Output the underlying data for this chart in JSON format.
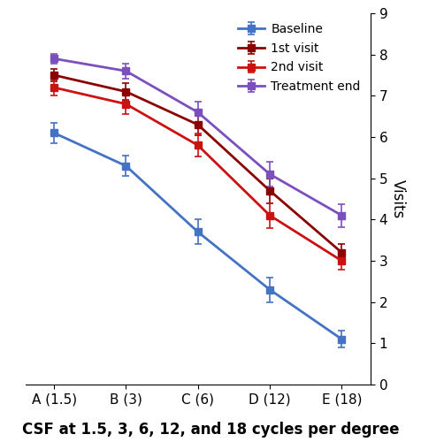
{
  "x_labels": [
    "A (1.5)",
    "B (3)",
    "C (6)",
    "D (12)",
    "E (18)"
  ],
  "x_positions": [
    0,
    1,
    2,
    3,
    4
  ],
  "series": [
    {
      "label": "Baseline",
      "color": "#4472C4",
      "values": [
        6.1,
        5.3,
        3.7,
        2.3,
        1.1
      ],
      "errors": [
        0.25,
        0.25,
        0.3,
        0.3,
        0.2
      ]
    },
    {
      "label": "1st visit",
      "color": "#8B0000",
      "values": [
        7.5,
        7.1,
        6.3,
        4.7,
        3.2
      ],
      "errors": [
        0.15,
        0.2,
        0.25,
        0.3,
        0.2
      ]
    },
    {
      "label": "2nd visit",
      "color": "#CC1111",
      "values": [
        7.2,
        6.8,
        5.8,
        4.1,
        3.0
      ],
      "errors": [
        0.2,
        0.25,
        0.28,
        0.3,
        0.22
      ]
    },
    {
      "label": "Treatment end",
      "color": "#7B4FBE",
      "values": [
        7.9,
        7.6,
        6.6,
        5.1,
        4.1
      ],
      "errors": [
        0.12,
        0.18,
        0.25,
        0.3,
        0.28
      ]
    }
  ],
  "ylim": [
    0,
    9
  ],
  "yticks": [
    0,
    1,
    2,
    3,
    4,
    5,
    6,
    7,
    8,
    9
  ],
  "ylabel": "Visits",
  "xlabel": "CSF at 1.5, 3, 6, 12, and 18 cycles per degree",
  "marker": "s",
  "markersize": 6,
  "linewidth": 2,
  "capsize": 3,
  "background_color": "#ffffff"
}
